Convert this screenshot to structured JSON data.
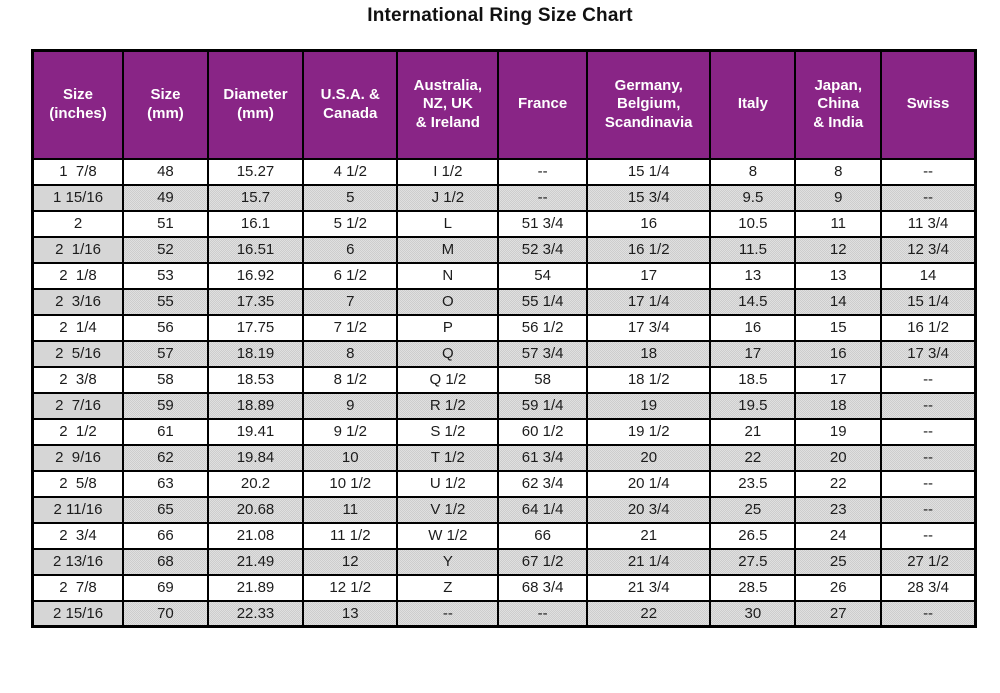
{
  "page": {
    "title": "International Ring Size Chart"
  },
  "colors": {
    "header_bg": "#8a1b87",
    "header_text": "#ffffff",
    "row_bg": "#ffffff",
    "row_alt_bg": "#d5d5d5",
    "grid": "#000000",
    "cell_text": "#1c1c1c",
    "title_text": "#111111"
  },
  "chart_data": {
    "type": "table",
    "title": "International Ring Size Chart",
    "columns": [
      "Size\n(inches)",
      "Size\n(mm)",
      "Diameter\n(mm)",
      "U.S.A. &\nCanada",
      "Australia,\nNZ, UK\n& Ireland",
      "France",
      "Germany,\nBelgium,\nScandinavia",
      "Italy",
      "Japan,\nChina\n& India",
      "Swiss"
    ],
    "rows": [
      [
        "1  7/8",
        "48",
        "15.27",
        "4 1/2",
        "I 1/2",
        "--",
        "15 1/4",
        "8",
        "8",
        "--"
      ],
      [
        "1 15/16",
        "49",
        "15.7",
        "5",
        "J 1/2",
        "--",
        "15 3/4",
        "9.5",
        "9",
        "--"
      ],
      [
        "2",
        "51",
        "16.1",
        "5 1/2",
        "L",
        "51 3/4",
        "16",
        "10.5",
        "11",
        "11 3/4"
      ],
      [
        "2  1/16",
        "52",
        "16.51",
        "6",
        "M",
        "52 3/4",
        "16 1/2",
        "11.5",
        "12",
        "12 3/4"
      ],
      [
        "2  1/8",
        "53",
        "16.92",
        "6 1/2",
        "N",
        "54",
        "17",
        "13",
        "13",
        "14"
      ],
      [
        "2  3/16",
        "55",
        "17.35",
        "7",
        "O",
        "55 1/4",
        "17 1/4",
        "14.5",
        "14",
        "15 1/4"
      ],
      [
        "2  1/4",
        "56",
        "17.75",
        "7 1/2",
        "P",
        "56 1/2",
        "17 3/4",
        "16",
        "15",
        "16 1/2"
      ],
      [
        "2  5/16",
        "57",
        "18.19",
        "8",
        "Q",
        "57 3/4",
        "18",
        "17",
        "16",
        "17 3/4"
      ],
      [
        "2  3/8",
        "58",
        "18.53",
        "8 1/2",
        "Q 1/2",
        "58",
        "18 1/2",
        "18.5",
        "17",
        "--"
      ],
      [
        "2  7/16",
        "59",
        "18.89",
        "9",
        "R 1/2",
        "59 1/4",
        "19",
        "19.5",
        "18",
        "--"
      ],
      [
        "2  1/2",
        "61",
        "19.41",
        "9 1/2",
        "S 1/2",
        "60 1/2",
        "19 1/2",
        "21",
        "19",
        "--"
      ],
      [
        "2  9/16",
        "62",
        "19.84",
        "10",
        "T 1/2",
        "61 3/4",
        "20",
        "22",
        "20",
        "--"
      ],
      [
        "2  5/8",
        "63",
        "20.2",
        "10 1/2",
        "U 1/2",
        "62 3/4",
        "20 1/4",
        "23.5",
        "22",
        "--"
      ],
      [
        "2 11/16",
        "65",
        "20.68",
        "11",
        "V 1/2",
        "64 1/4",
        "20 3/4",
        "25",
        "23",
        "--"
      ],
      [
        "2  3/4",
        "66",
        "21.08",
        "11 1/2",
        "W 1/2",
        "66",
        "21",
        "26.5",
        "24",
        "--"
      ],
      [
        "2 13/16",
        "68",
        "21.49",
        "12",
        "Y",
        "67 1/2",
        "21 1/4",
        "27.5",
        "25",
        "27 1/2"
      ],
      [
        "2  7/8",
        "69",
        "21.89",
        "12 1/2",
        "Z",
        "68 3/4",
        "21 3/4",
        "28.5",
        "26",
        "28 3/4"
      ],
      [
        "2 15/16",
        "70",
        "22.33",
        "13",
        "--",
        "--",
        "22",
        "30",
        "27",
        "--"
      ]
    ],
    "column_widths_percent": [
      9.6,
      9.0,
      10.1,
      10.0,
      10.7,
      9.4,
      13.1,
      9.0,
      9.1,
      10.0
    ],
    "layout_hints": {
      "striping": "alternating rows, even rows shaded gray",
      "grid": "black 2px inner borders, 3px outer border",
      "header_style": "purple background, white bold text"
    }
  }
}
